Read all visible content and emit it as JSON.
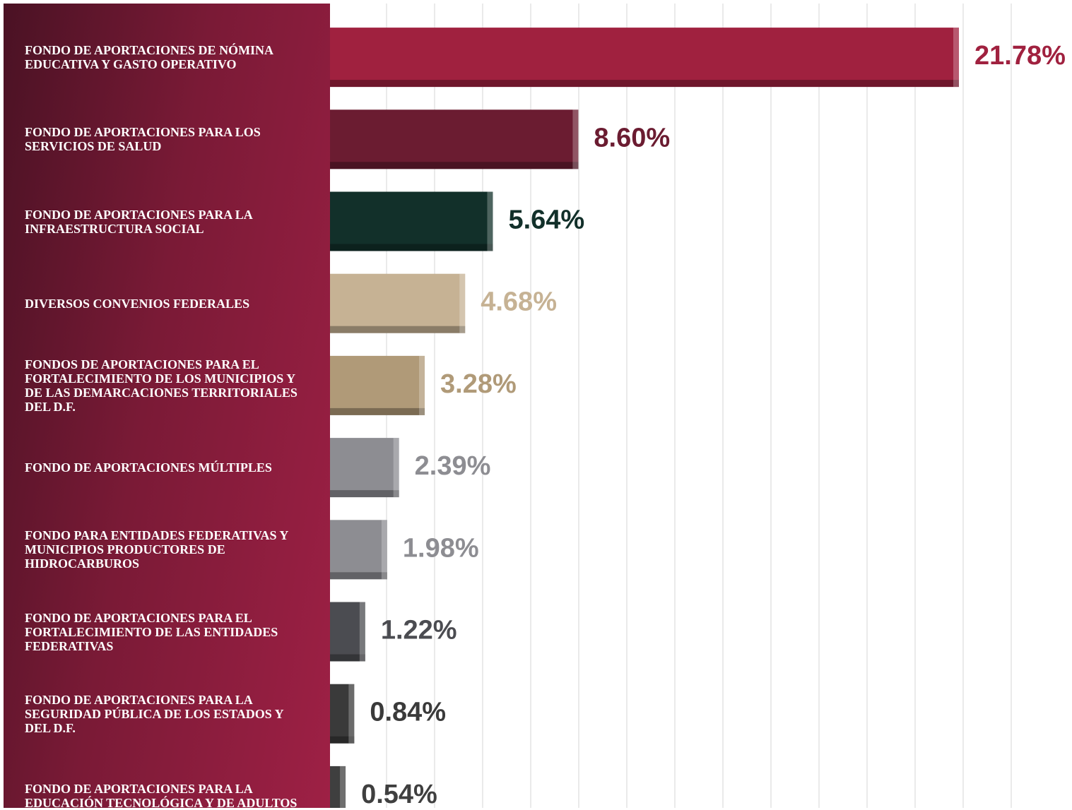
{
  "chart_data": {
    "type": "hbar",
    "categories": [
      "FONDO DE APORTACIONES DE NÓMINA EDUCATIVA Y GASTO OPERATIVO",
      "FONDO DE APORTACIONES PARA LOS SERVICIOS DE SALUD",
      "FONDO DE APORTACIONES PARA LA INFRAESTRUCTURA SOCIAL",
      "DIVERSOS CONVENIOS FEDERALES",
      "FONDOS DE APORTACIONES PARA EL FORTALECIMIENTO DE LOS MUNICIPIOS Y DE LAS DEMARCACIONES TERRITORIALES DEL D.F.",
      "FONDO DE APORTACIONES  MÚLTIPLES",
      "FONDO PARA ENTIDADES FEDERATIVAS Y MUNICIPIOS PRODUCTORES DE HIDROCARBUROS",
      "FONDO DE APORTACIONES PARA EL FORTALECIMIENTO DE LAS ENTIDADES FEDERATIVAS",
      "FONDO DE APORTACIONES PARA LA SEGURIDAD PÚBLICA DE LOS ESTADOS Y DEL D.F.",
      "FONDO DE APORTACIONES PARA LA EDUCACIÓN TECNOLÓGICA Y DE ADULTOS"
    ],
    "values": [
      21.78,
      8.6,
      5.64,
      4.68,
      3.28,
      2.39,
      1.98,
      1.22,
      0.84,
      0.54
    ],
    "value_labels": [
      "21.78%",
      "8.60%",
      "5.64%",
      "4.68%",
      "3.28%",
      "2.39%",
      "1.98%",
      "1.22%",
      "0.84%",
      "0.54%"
    ],
    "colors": [
      "#a0213f",
      "#6b1c31",
      "#12302a",
      "#c6b294",
      "#b09a78",
      "#8d8d92",
      "#8d8d92",
      "#4b4c51",
      "#3a3a3a",
      "#3f3f3f"
    ]
  }
}
